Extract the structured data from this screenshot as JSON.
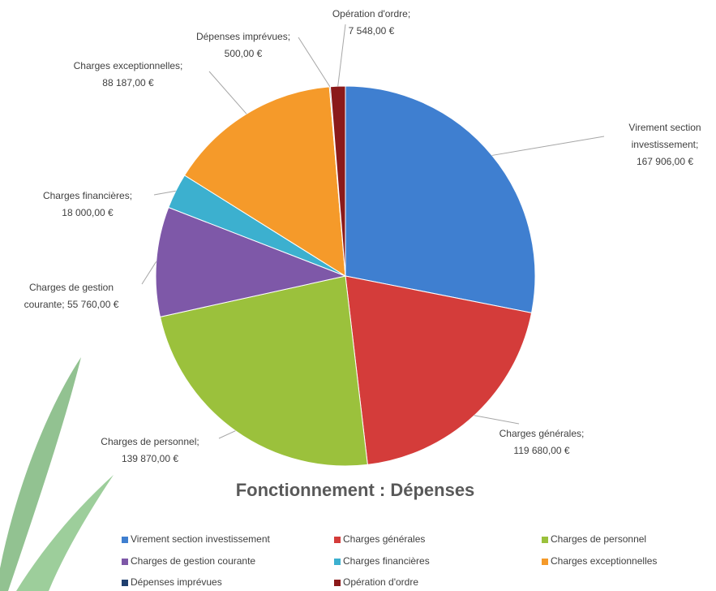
{
  "chart_data": {
    "type": "pie",
    "title": "Fonctionnement : Dépenses",
    "categories": [
      "Virement section investissement",
      "Charges générales",
      "Charges de personnel",
      "Charges de gestion courante",
      "Charges financières",
      "Charges exceptionnelles",
      "Dépenses imprévues",
      "Opération d'ordre"
    ],
    "values": [
      167906,
      119680,
      139870,
      55760,
      18000,
      88187,
      500,
      7548
    ],
    "value_labels": [
      "Virement section investissement; 167 906,00 €",
      "Charges générales; 119 680,00 €",
      "Charges de personnel; 139 870,00 €",
      "Charges de gestion courante; 55 760,00 €",
      "Charges financières; 18 000,00 €",
      "Charges exceptionnelles; 88 187,00 €",
      "Dépenses imprévues; 500,00 €",
      "Opération d'ordre; 7 548,00 €"
    ],
    "colors": [
      "#3f7fd0",
      "#d43c3a",
      "#9bc13c",
      "#7e58a8",
      "#3cb0cf",
      "#f59a2a",
      "#1f3f6e",
      "#8b1a1a"
    ],
    "legend": "bottom"
  }
}
